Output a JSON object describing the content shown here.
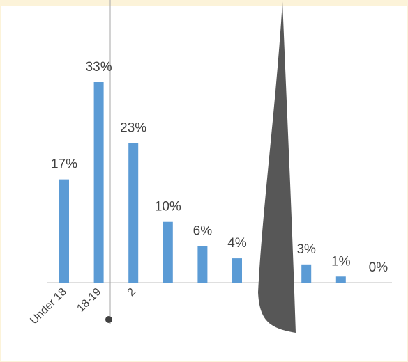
{
  "chart_data": {
    "type": "bar",
    "categories": [
      "Under 18",
      "18-19",
      "2",
      null,
      null,
      null,
      null,
      null,
      null,
      null
    ],
    "values": [
      17,
      33,
      23,
      10,
      6,
      4,
      null,
      3,
      1,
      0
    ],
    "value_labels": [
      "17%",
      "33%",
      "23%",
      "10%",
      "6%",
      "4%",
      null,
      "3%",
      "1%",
      "0%"
    ],
    "color": "#5b9bd5"
  }
}
